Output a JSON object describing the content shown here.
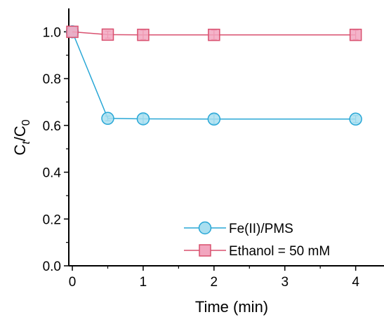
{
  "chart_data": {
    "type": "line",
    "xlabel": "Time (min)",
    "ylabel": {
      "main": "C",
      "sub1": "t",
      "sep": "/C",
      "sub2": "0"
    },
    "xlim": [
      -0.05,
      4.4
    ],
    "ylim": [
      0.0,
      1.1
    ],
    "xticks": [
      0,
      1,
      2,
      3,
      4
    ],
    "xtick_labels": [
      "0",
      "1",
      "2",
      "3",
      "4"
    ],
    "yticks": [
      0.0,
      0.2,
      0.4,
      0.6,
      0.8,
      1.0
    ],
    "ytick_labels": [
      "0.0",
      "0.2",
      "0.4",
      "0.6",
      "0.8",
      "1.0"
    ],
    "grid": false,
    "legend_position": "bottom-right",
    "series": [
      {
        "name": "Fe(II)/PMS",
        "marker": "circle",
        "color": "#29a7d6",
        "fill": "#a9dff0",
        "x": [
          0,
          0.5,
          1,
          2,
          4
        ],
        "y": [
          1.0,
          0.63,
          0.628,
          0.627,
          0.627
        ],
        "err": [
          0.0,
          0.01,
          0.02,
          0.02,
          0.015
        ]
      },
      {
        "name": "Ethanol = 50 mM",
        "marker": "square",
        "color": "#d9506f",
        "fill": "#f2a6bf",
        "x": [
          0,
          0.5,
          1,
          2,
          4
        ],
        "y": [
          1.0,
          0.988,
          0.987,
          0.987,
          0.987
        ],
        "err": [
          0.0,
          0.015,
          0.02,
          0.02,
          0.02
        ]
      }
    ]
  }
}
